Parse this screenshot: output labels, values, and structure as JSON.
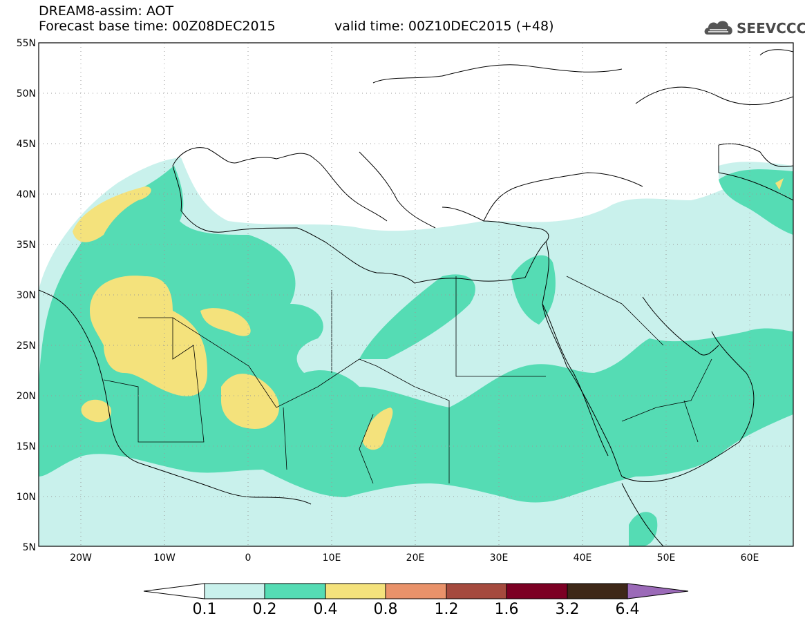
{
  "header": {
    "title": "DREAM8-assim: AOT",
    "base_time": "Forecast base time: 00Z08DEC2015",
    "valid_time": "valid time: 00Z10DEC2015 (+48)",
    "logo_text": "SEEVCCC"
  },
  "map": {
    "projection": "lat-lon",
    "lon_range": [
      -25,
      65
    ],
    "lat_range": [
      5,
      55
    ],
    "lat_ticks": [
      "5N",
      "10N",
      "15N",
      "20N",
      "25N",
      "30N",
      "35N",
      "40N",
      "45N",
      "50N",
      "55N"
    ],
    "lon_ticks": [
      "20W",
      "10W",
      "0",
      "10E",
      "20E",
      "30E",
      "40E",
      "50E",
      "60E"
    ],
    "grid": "dotted"
  },
  "colorbar": {
    "labels": [
      "0.1",
      "0.2",
      "0.4",
      "0.8",
      "1.2",
      "1.6",
      "3.2",
      "6.4"
    ],
    "colors": [
      "#c9f1ec",
      "#55dcb4",
      "#f4e27c",
      "#e9926a",
      "#a54a3e",
      "#7c0024",
      "#3e2818",
      "#9b6ab8"
    ]
  },
  "colors": {
    "level_0_1": "#c9f1ec",
    "level_0_2": "#55dcb4",
    "level_0_4": "#f4e27c",
    "coast": "#000000"
  }
}
